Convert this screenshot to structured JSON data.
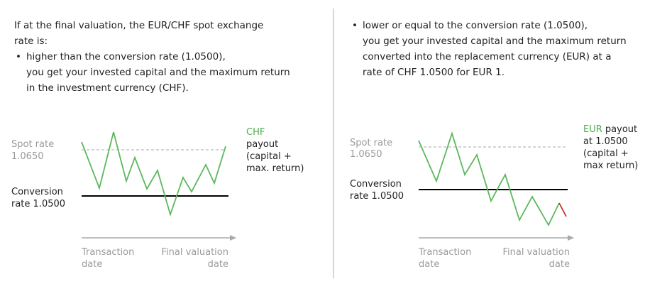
{
  "left": {
    "intro": [
      "If at the final valuation, the EUR/CHF spot exchange",
      "rate is:"
    ],
    "bullet": [
      "higher than the conversion rate (1.0500),",
      "you get your invested capital and the maximum return",
      "in the investment currency (CHF)."
    ],
    "diagram": {
      "spot_rate": [
        "Spot rate",
        "1.0650"
      ],
      "conversion_rate": [
        "Conversion",
        "rate 1.0500"
      ],
      "payout_currency": "CHF",
      "payout": [
        "payout",
        "(capital +",
        "max. return)"
      ],
      "x_start": [
        "Transaction",
        "date"
      ],
      "x_end": [
        "Final valuation",
        "date"
      ]
    }
  },
  "right": {
    "bullet": [
      "lower or equal to the conversion rate (1.0500),",
      "you get your invested capital and the maximum return",
      "converted into the replacement currency (EUR) at a",
      "rate of CHF 1.0500 for EUR 1."
    ],
    "diagram": {
      "spot_rate": [
        "Spot rate",
        "1.0650"
      ],
      "conversion_rate": [
        "Conversion",
        "rate 1.0500"
      ],
      "payout_currency": "EUR",
      "payout_first_line_rest": "payout",
      "payout": [
        "at 1.0500",
        "(capital +",
        "max return)"
      ],
      "x_start": [
        "Transaction",
        "date"
      ],
      "x_end": [
        "Final valuation",
        "date"
      ]
    }
  }
}
